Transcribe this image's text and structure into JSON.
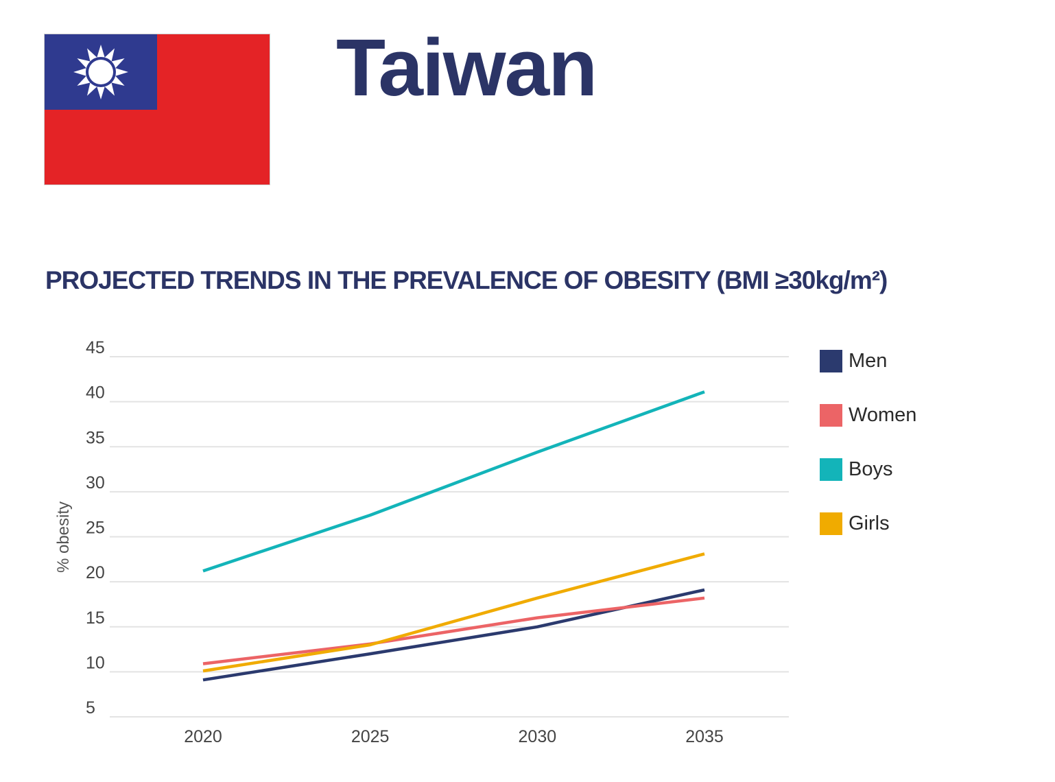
{
  "header": {
    "country": "Taiwan",
    "flag_icon": "taiwan-flag-icon"
  },
  "chart_heading": "PROJECTED TRENDS IN THE PREVALENCE OF OBESITY (BMI ≥30kg/m²)",
  "colors": {
    "title": "#2b3466",
    "grid": "#e3e3e3",
    "flag_red": "#e42326",
    "flag_blue": "#2f3a8f",
    "flag_sun": "#ffffff"
  },
  "chart_data": {
    "type": "line",
    "title": "PROJECTED TRENDS IN THE PREVALENCE OF OBESITY (BMI ≥30kg/m²)",
    "xlabel": "",
    "ylabel": "% obesity",
    "x": [
      2020,
      2025,
      2030,
      2035
    ],
    "xlim": [
      2020,
      2035
    ],
    "ylim": [
      5,
      45
    ],
    "yticks": [
      5,
      10,
      15,
      20,
      25,
      30,
      35,
      40,
      45
    ],
    "grid": true,
    "legend_position": "right",
    "series": [
      {
        "name": "Men",
        "color": "#2b3a6e",
        "values": [
          9.1,
          12.0,
          15.0,
          19.1
        ]
      },
      {
        "name": "Women",
        "color": "#ec6466",
        "values": [
          10.9,
          13.1,
          16.0,
          18.2
        ]
      },
      {
        "name": "Boys",
        "color": "#13b4b9",
        "values": [
          21.2,
          27.4,
          34.4,
          41.1
        ]
      },
      {
        "name": "Girls",
        "color": "#f0ab00",
        "values": [
          10.1,
          13.0,
          18.2,
          23.1
        ]
      }
    ]
  }
}
